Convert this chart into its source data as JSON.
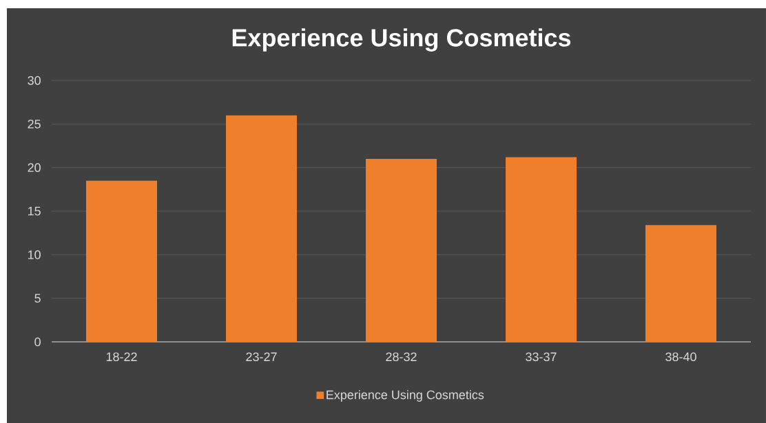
{
  "chart_data": {
    "type": "bar",
    "title": "Experience Using Cosmetics",
    "categories": [
      "18-22",
      "23-27",
      "28-32",
      "33-37",
      "38-40"
    ],
    "series": [
      {
        "name": "Experience Using Cosmetics",
        "color": "#f07f2c",
        "values": [
          18.5,
          26,
          21,
          21.2,
          13.4
        ]
      }
    ],
    "ylim": [
      0,
      30
    ],
    "yticks": [
      0,
      5,
      10,
      15,
      20,
      25,
      30
    ],
    "grid": "y",
    "legend": "bottom"
  }
}
